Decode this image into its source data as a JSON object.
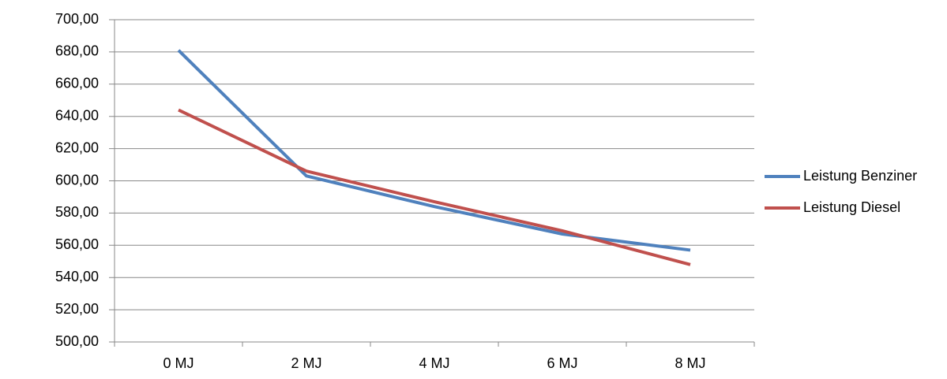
{
  "chart_data": {
    "type": "line",
    "categories": [
      "0 MJ",
      "2 MJ",
      "4 MJ",
      "6 MJ",
      "8 MJ"
    ],
    "series": [
      {
        "name": "Leistung Benziner",
        "color": "#4f81bd",
        "values": [
          681,
          603,
          584,
          567,
          557
        ]
      },
      {
        "name": "Leistung Diesel",
        "color": "#c0504d",
        "values": [
          644,
          606,
          587,
          569,
          548
        ]
      }
    ],
    "ylim": [
      500,
      700
    ],
    "yticks": [
      {
        "value": 500,
        "label": "500,00"
      },
      {
        "value": 520,
        "label": "520,00"
      },
      {
        "value": 540,
        "label": "540,00"
      },
      {
        "value": 560,
        "label": "560,00"
      },
      {
        "value": 580,
        "label": "580,00"
      },
      {
        "value": 600,
        "label": "600,00"
      },
      {
        "value": 620,
        "label": "620,00"
      },
      {
        "value": 640,
        "label": "640,00"
      },
      {
        "value": 660,
        "label": "660,00"
      },
      {
        "value": 680,
        "label": "680,00"
      },
      {
        "value": 700,
        "label": "700,00"
      }
    ],
    "grid": true,
    "legend": "right"
  }
}
